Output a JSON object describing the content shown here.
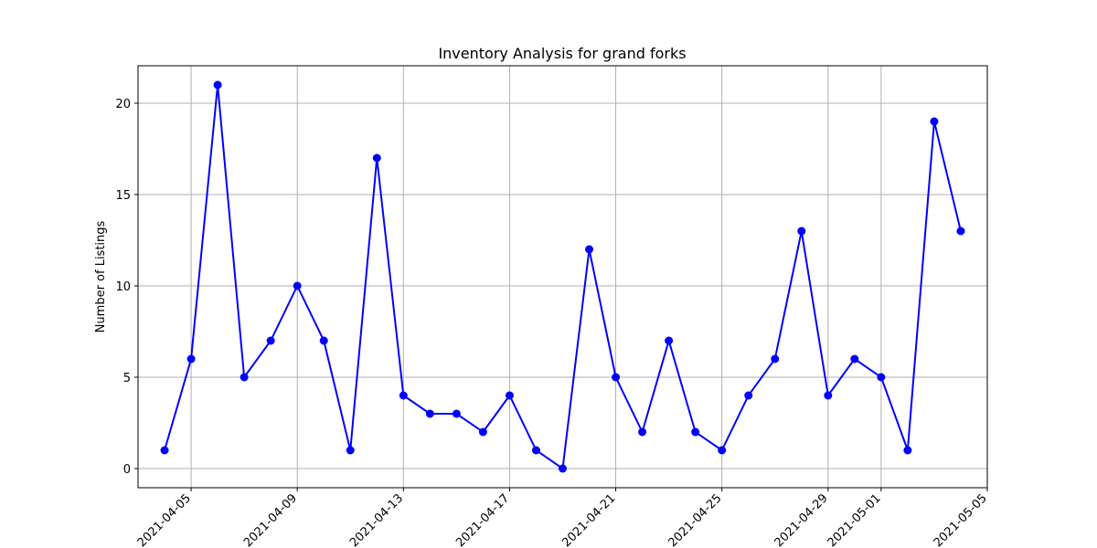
{
  "chart_data": {
    "type": "line",
    "title": "Inventory Analysis for grand forks",
    "xlabel": "",
    "ylabel": "Number of Listings",
    "grid": true,
    "legend": "none",
    "line_color": "#0000ff",
    "marker_color": "#0000ff",
    "grid_color": "#b0b0b0",
    "xlim": [
      "2021-04-03",
      "2021-05-05"
    ],
    "ylim": [
      -1.05,
      22.05
    ],
    "x_ticks": [
      "2021-04-05",
      "2021-04-09",
      "2021-04-13",
      "2021-04-17",
      "2021-04-21",
      "2021-04-25",
      "2021-04-29",
      "2021-05-01",
      "2021-05-05"
    ],
    "y_ticks": [
      0,
      5,
      10,
      15,
      20
    ],
    "series": [
      {
        "x": [
          "2021-04-04",
          "2021-04-05",
          "2021-04-06",
          "2021-04-07",
          "2021-04-08",
          "2021-04-09",
          "2021-04-10",
          "2021-04-11",
          "2021-04-12",
          "2021-04-13",
          "2021-04-14",
          "2021-04-15",
          "2021-04-16",
          "2021-04-17",
          "2021-04-18",
          "2021-04-19",
          "2021-04-20",
          "2021-04-21",
          "2021-04-22",
          "2021-04-23",
          "2021-04-24",
          "2021-04-25",
          "2021-04-26",
          "2021-04-27",
          "2021-04-28",
          "2021-04-29",
          "2021-04-30",
          "2021-05-01",
          "2021-05-02",
          "2021-05-03",
          "2021-05-04"
        ],
        "values": [
          1,
          6,
          21,
          5,
          7,
          10,
          7,
          1,
          17,
          4,
          3,
          3,
          2,
          4,
          1,
          0,
          12,
          5,
          2,
          7,
          2,
          1,
          4,
          6,
          13,
          4,
          6,
          5,
          1,
          19,
          13
        ]
      }
    ]
  }
}
